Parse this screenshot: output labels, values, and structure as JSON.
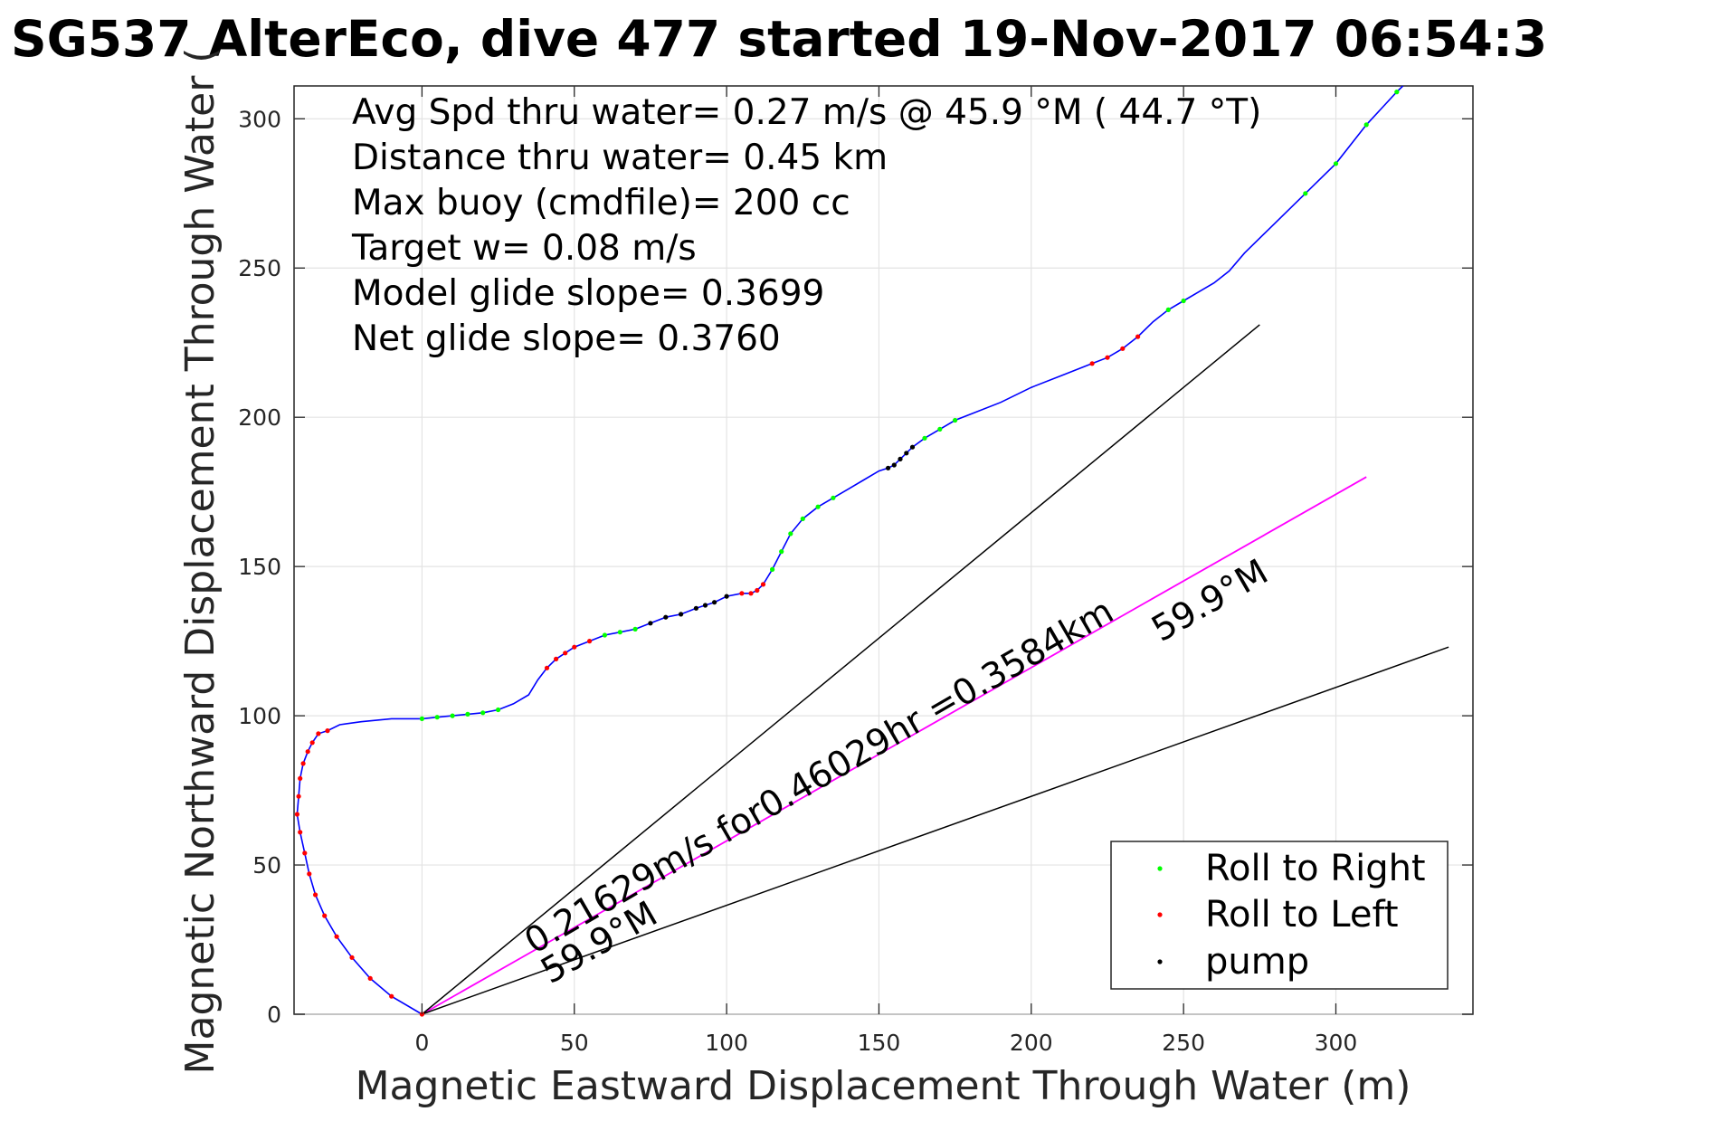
{
  "chart_data": {
    "type": "line",
    "title": "SG537 AlterEco, dive 477 started 19-Nov-2017 06:54:3",
    "xlabel": "Magnetic Eastward Displacement Through Water (m)",
    "ylabel": "Magnetic Northward Displacement Through Water (",
    "xlim": [
      -42,
      345
    ],
    "ylim": [
      0,
      311
    ],
    "xticks": [
      0,
      50,
      100,
      150,
      200,
      250,
      300
    ],
    "yticks": [
      0,
      50,
      100,
      150,
      200,
      250,
      300
    ],
    "grid": true,
    "legend_position": "bottom-right",
    "stats": [
      "Avg Spd thru water=  0.27 m/s @  45.9 °M ( 44.7 °T)",
      "Distance thru water=  0.45 km",
      "Max buoy (cmdfile)= 200 cc",
      "Target w= 0.08 m/s",
      "Model glide slope= 0.3699",
      "Net glide slope= 0.3760"
    ],
    "annotations": {
      "speed_text": "0.21629m/s for0.46029hr =0.3584km",
      "heading_lower": "59.9°M",
      "heading_upper": "59.9°M"
    },
    "colors": {
      "track": "#0000ff",
      "roll_right": "#00ff00",
      "roll_left": "#ff0000",
      "pump": "#000000",
      "current_line": "#ff00ff",
      "reference_lines": "#000000"
    },
    "legend": [
      {
        "label": "Roll to Right",
        "color": "#00ff00"
      },
      {
        "label": "Roll to Left",
        "color": "#ff0000"
      },
      {
        "label": "pump",
        "color": "#000000"
      }
    ],
    "series": [
      {
        "role": "track",
        "x": [
          0,
          -10,
          -17,
          -23,
          -28,
          -32,
          -35,
          -37,
          -38.5,
          -40,
          -41,
          -40.5,
          -40,
          -39,
          -37.5,
          -36,
          -34,
          -31,
          -27,
          -20,
          -10,
          0,
          5,
          10,
          15,
          20,
          25,
          30,
          35,
          38,
          41,
          44,
          47,
          50,
          55,
          60,
          65,
          70,
          75,
          80,
          85,
          90,
          93,
          96,
          100,
          105,
          108,
          110,
          112,
          115,
          118,
          121,
          125,
          130,
          135,
          140,
          145,
          150,
          153,
          155,
          157,
          159,
          161,
          165,
          170,
          175,
          180,
          190,
          200,
          210,
          220,
          225,
          230,
          235,
          240,
          245,
          250,
          255,
          260,
          265,
          270,
          280,
          290,
          300,
          310,
          320,
          322
        ],
        "y": [
          0,
          6,
          12,
          19,
          26,
          33,
          40,
          47,
          54,
          61,
          67,
          73,
          79,
          84,
          88,
          91,
          94,
          95,
          97,
          98,
          99,
          99,
          99.5,
          100,
          100.5,
          101,
          102,
          104,
          107,
          112,
          116,
          119,
          121,
          123,
          125,
          127,
          128,
          129,
          131,
          133,
          134,
          136,
          137,
          138,
          140,
          141,
          141,
          142,
          144,
          149,
          155,
          161,
          166,
          170,
          173,
          176,
          179,
          182,
          183,
          184,
          186,
          188,
          190,
          193,
          196,
          199,
          201,
          205,
          210,
          214,
          218,
          220,
          223,
          227,
          232,
          236,
          239,
          242,
          245,
          249,
          255,
          265,
          275,
          285,
          298,
          309,
          311
        ]
      },
      {
        "role": "current_heading_line",
        "x": [
          0,
          310
        ],
        "y": [
          0,
          180
        ]
      },
      {
        "role": "upper_reference_line",
        "x": [
          0,
          275
        ],
        "y": [
          0,
          231
        ]
      },
      {
        "role": "lower_reference_line",
        "x": [
          0,
          337
        ],
        "y": [
          0,
          123
        ]
      }
    ]
  }
}
